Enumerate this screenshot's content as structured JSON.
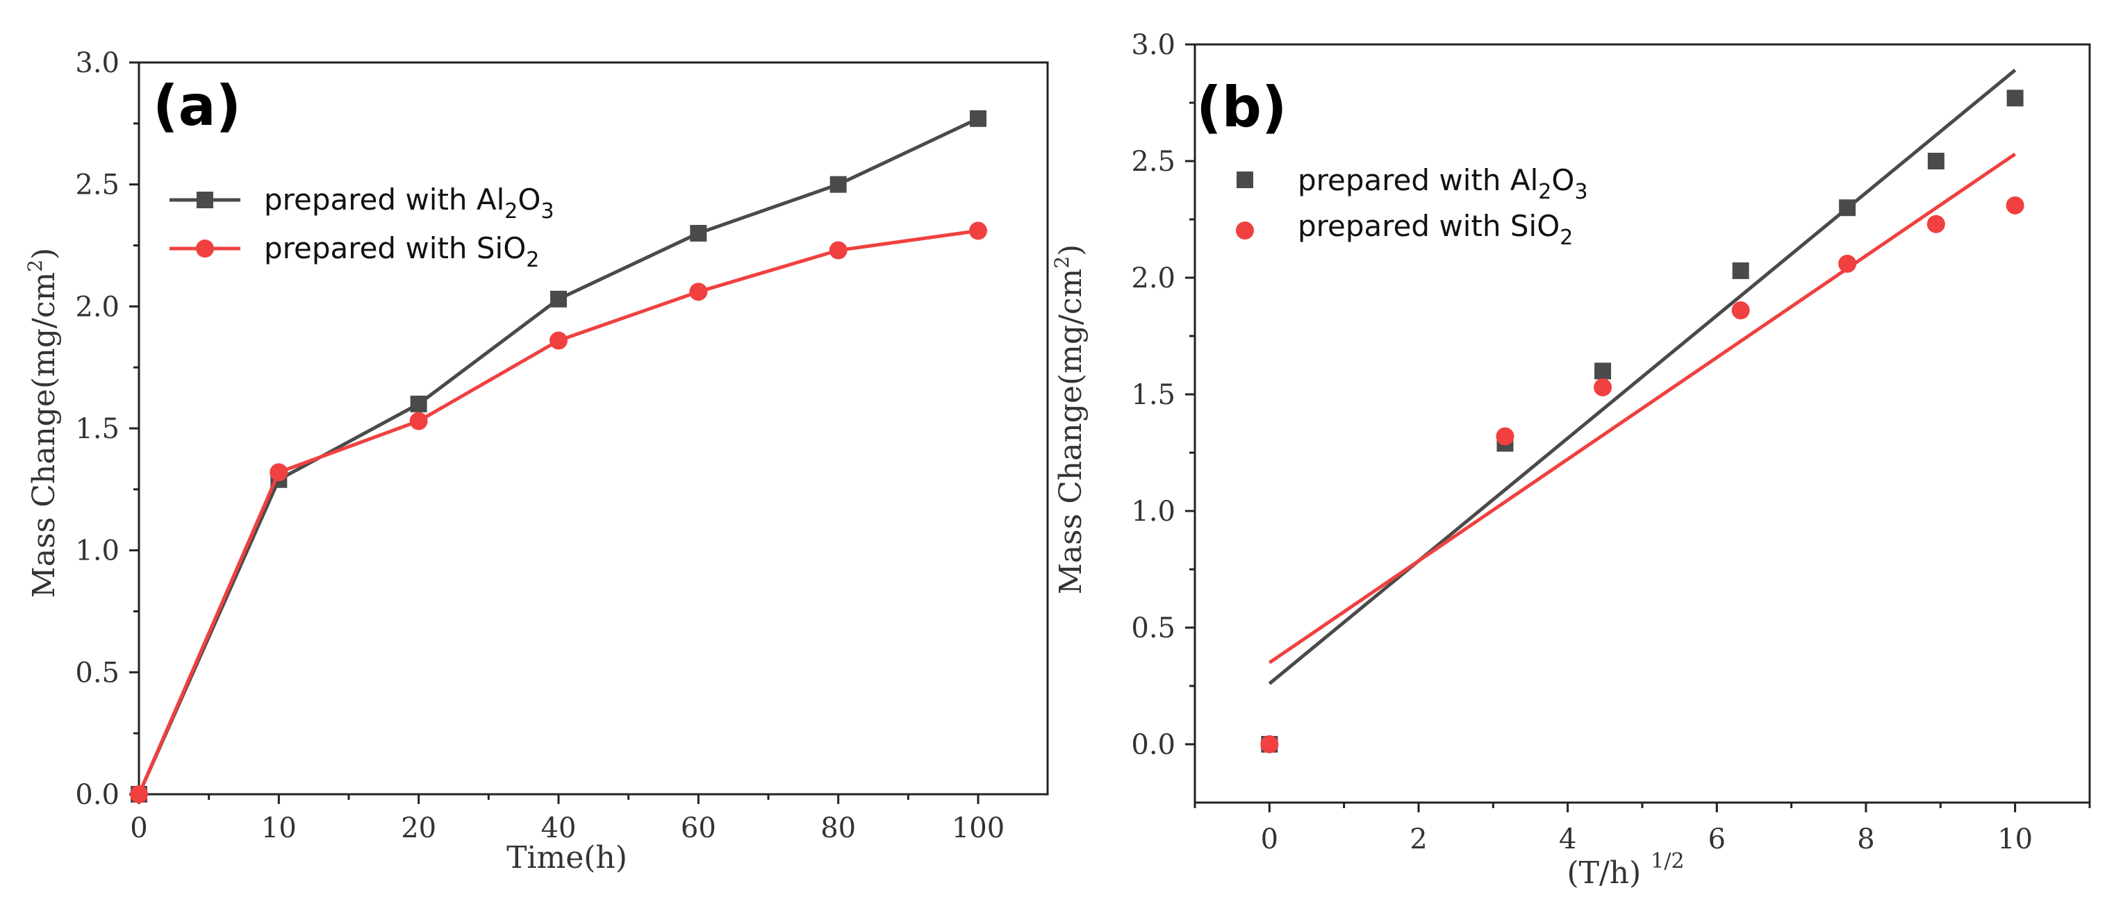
{
  "chart_data": [
    {
      "type": "line",
      "panel_label": "(a)",
      "title": "",
      "xlabel": "Time(h)",
      "ylabel": "Mass Change(mg/cm",
      "ylabel_sup": "2",
      "ylabel_close": ")",
      "x_ticks": [
        0,
        10,
        20,
        40,
        60,
        80,
        100
      ],
      "x_tick_labels": [
        "0",
        "10",
        "20",
        "40",
        "60",
        "80",
        "100"
      ],
      "y_ticks": [
        0,
        0.5,
        1.0,
        1.5,
        2.0,
        2.5,
        3.0
      ],
      "y_tick_labels": [
        "0.0",
        "0.5",
        "1.0",
        "1.5",
        "2.0",
        "2.5",
        "3.0"
      ],
      "ylim": [
        0,
        3.0
      ],
      "x_scale": "categorical-spacing",
      "legend_position": "top-left",
      "series": [
        {
          "name_main": "prepared with Al",
          "name_sub1": "2",
          "name_mid": "O",
          "name_sub2": "3",
          "color": "#4a4a4a",
          "marker": "square",
          "x": [
            0,
            10,
            20,
            40,
            60,
            80,
            100
          ],
          "y": [
            0.0,
            1.29,
            1.6,
            2.03,
            2.3,
            2.5,
            2.77
          ]
        },
        {
          "name_main": "prepared with SiO",
          "name_sub1": "2",
          "name_mid": "",
          "name_sub2": "",
          "color": "#f04040",
          "marker": "circle",
          "x": [
            0,
            10,
            20,
            40,
            60,
            80,
            100
          ],
          "y": [
            0.0,
            1.32,
            1.53,
            1.86,
            2.06,
            2.23,
            2.31
          ]
        }
      ]
    },
    {
      "type": "scatter",
      "panel_label": "(b)",
      "title": "",
      "xlabel": "(T/h)",
      "xlabel_sup": "1/2",
      "ylabel": "Mass Change(mg/cm",
      "ylabel_sup": "2",
      "ylabel_close": ")",
      "xlim": [
        -1.0,
        11.0
      ],
      "x_ticks": [
        0,
        2,
        4,
        6,
        8,
        10
      ],
      "x_tick_labels": [
        "0",
        "2",
        "4",
        "6",
        "8",
        "10"
      ],
      "y_ticks": [
        0,
        0.5,
        1.0,
        1.5,
        2.0,
        2.5,
        3.0
      ],
      "y_tick_labels": [
        "0.0",
        "0.5",
        "1.0",
        "1.5",
        "2.0",
        "2.5",
        "3.0"
      ],
      "ylim": [
        -0.25,
        3.0
      ],
      "legend_position": "top-left",
      "series": [
        {
          "name_main": "prepared with Al",
          "name_sub1": "2",
          "name_mid": "O",
          "name_sub2": "3",
          "color": "#4a4a4a",
          "marker": "square",
          "x": [
            0,
            3.16,
            4.47,
            6.32,
            7.75,
            8.94,
            10.0
          ],
          "y": [
            0.0,
            1.29,
            1.6,
            2.03,
            2.3,
            2.5,
            2.77
          ],
          "fit_line": {
            "x": [
              0,
              10
            ],
            "y": [
              0.26,
              2.89
            ]
          }
        },
        {
          "name_main": "prepared with SiO",
          "name_sub1": "2",
          "name_mid": "",
          "name_sub2": "",
          "color": "#f04040",
          "marker": "circle",
          "x": [
            0,
            3.16,
            4.47,
            6.32,
            7.75,
            8.94,
            10.0
          ],
          "y": [
            0.0,
            1.32,
            1.53,
            1.86,
            2.06,
            2.23,
            2.31
          ],
          "fit_line": {
            "x": [
              0,
              10
            ],
            "y": [
              0.35,
              2.53
            ]
          }
        }
      ]
    }
  ]
}
